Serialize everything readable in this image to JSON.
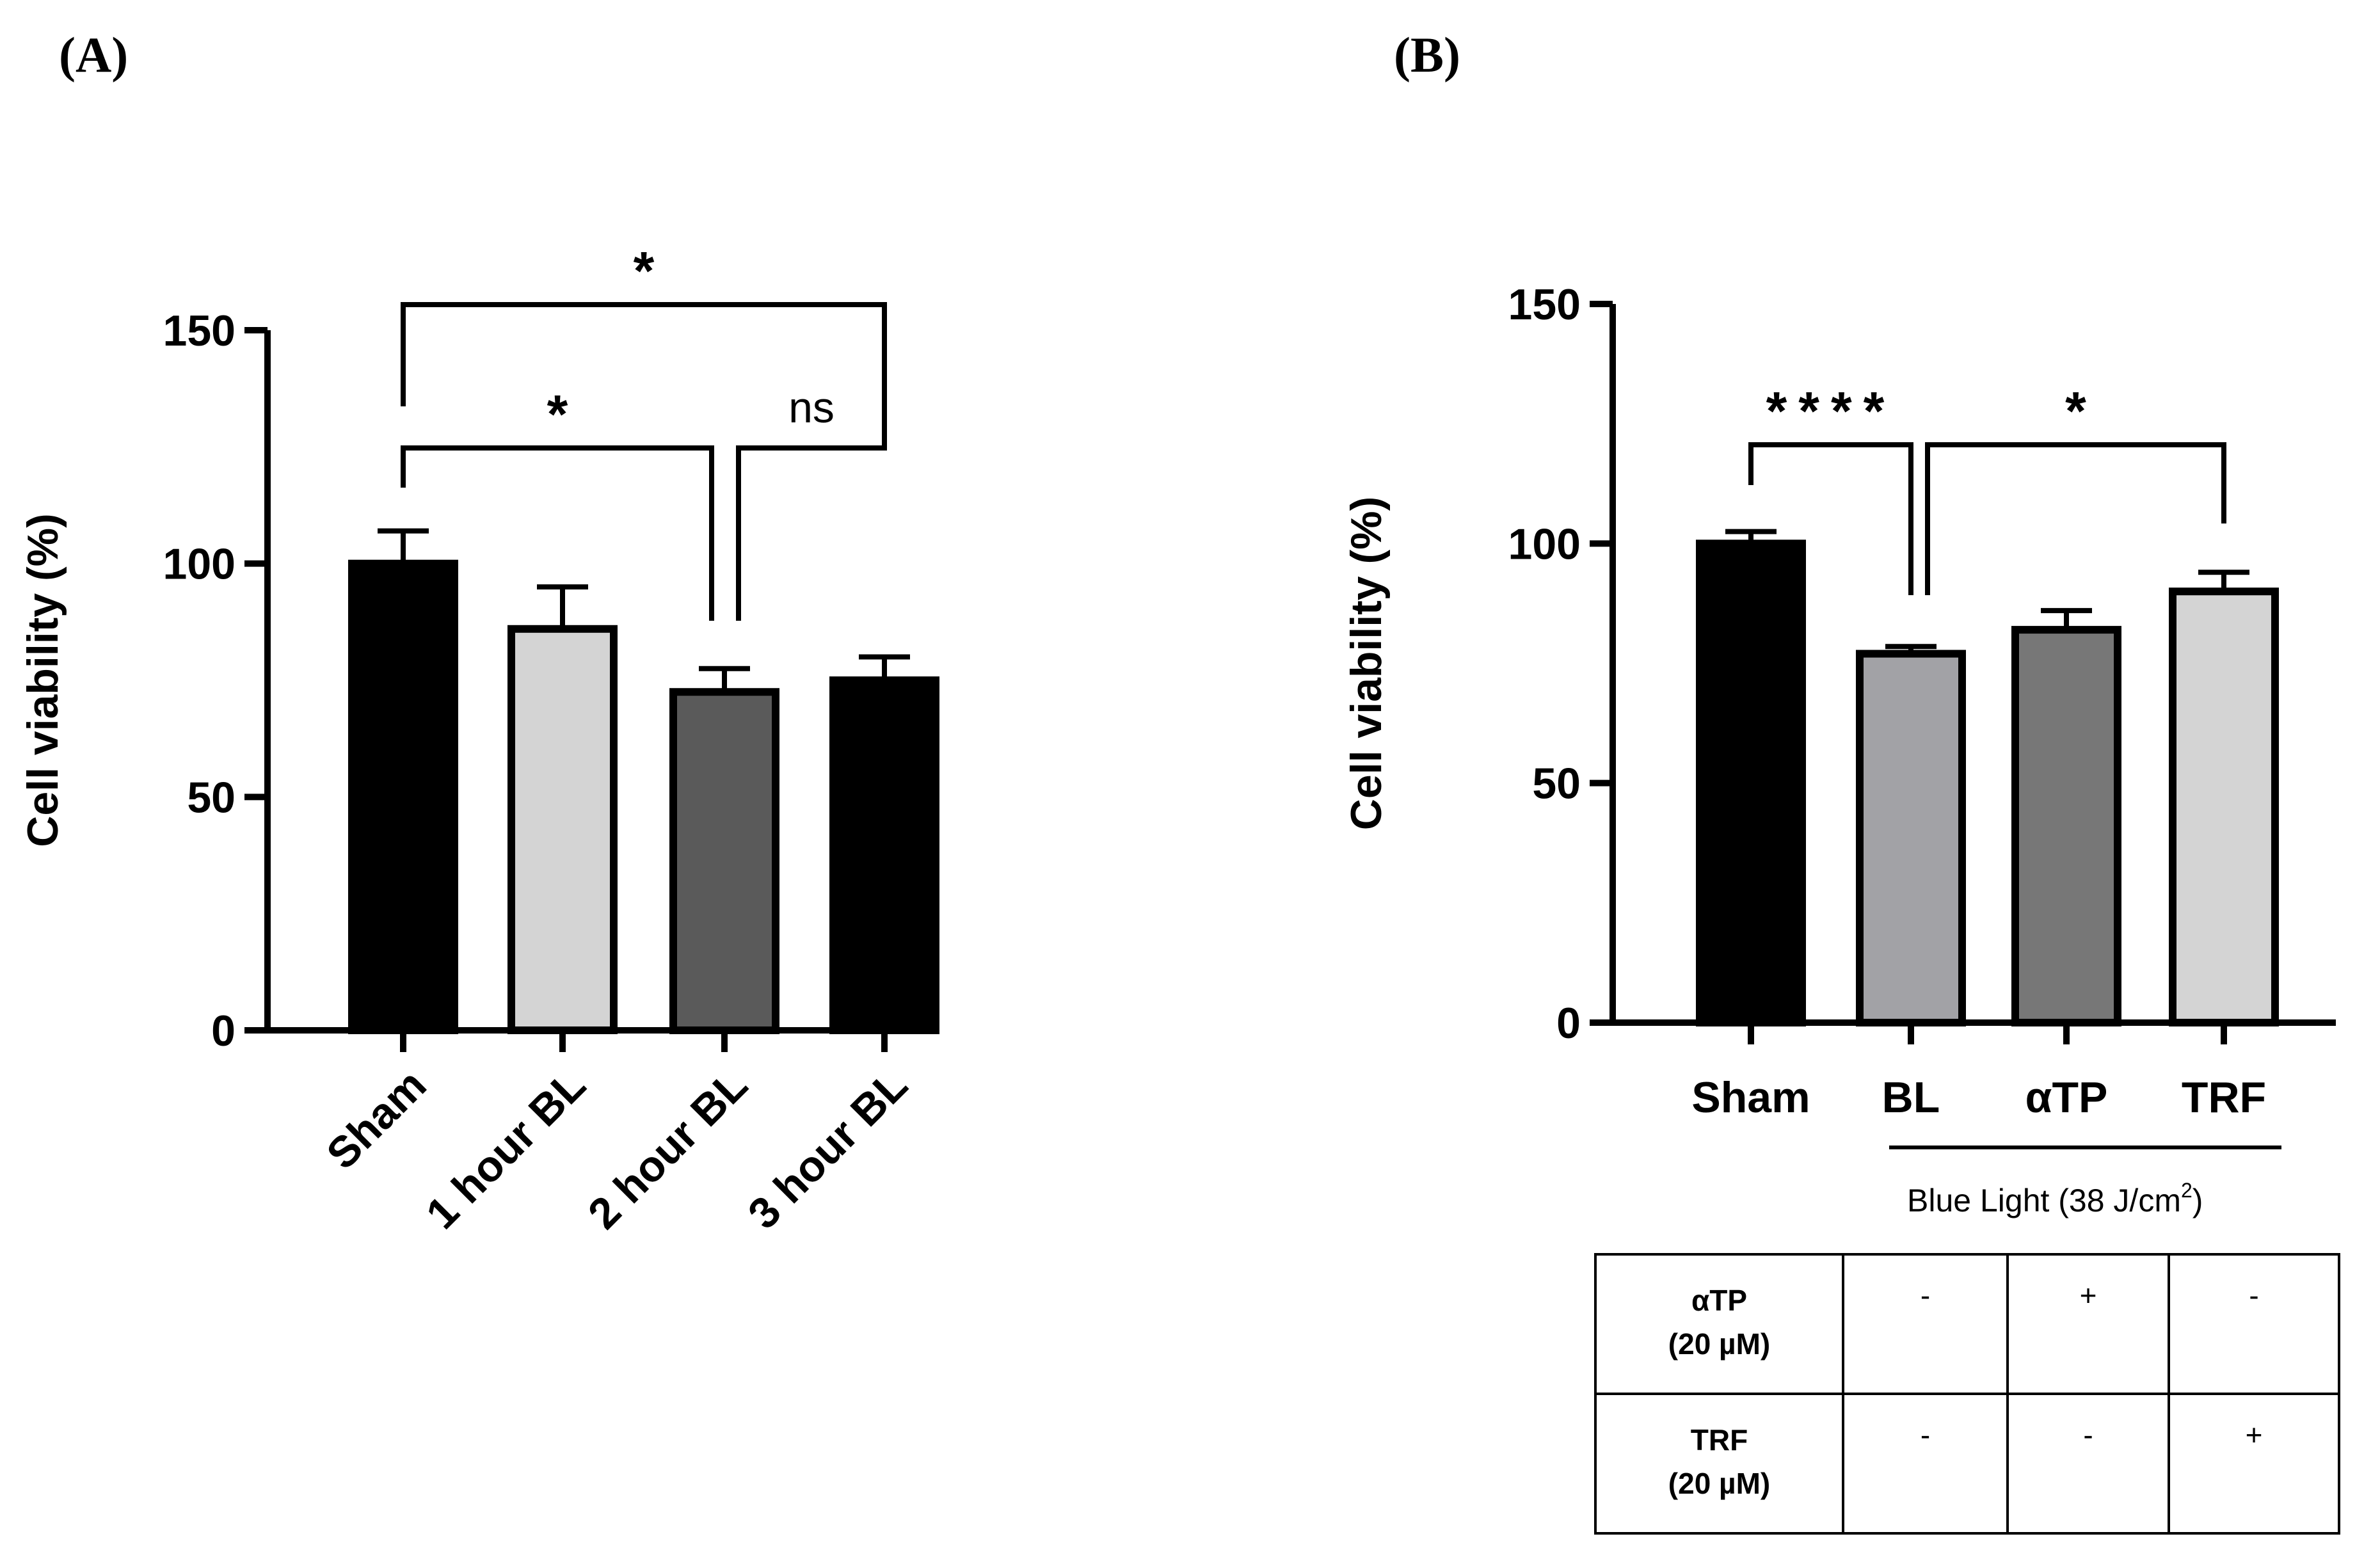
{
  "panels": {
    "a_label": "(A)",
    "b_label": "(B)"
  },
  "chart_data": [
    {
      "type": "bar",
      "panel": "A",
      "ylabel": "Cell viability (%)",
      "xlabel": "",
      "ylim": [
        0,
        150
      ],
      "yticks": [
        0,
        50,
        100,
        150
      ],
      "categories": [
        "Sham",
        "1 hour BL",
        "2 hour BL",
        "3 hour BL"
      ],
      "values": [
        100,
        86,
        72.5,
        75
      ],
      "errors": [
        7,
        9,
        5,
        5
      ],
      "bar_colors": [
        "#000000",
        "#d4d4d4",
        "#5a5a5a",
        "#000000"
      ],
      "annotations": [
        {
          "from": 0,
          "to": 3,
          "label": "*"
        },
        {
          "from": 0,
          "to": 2,
          "label": "*"
        },
        {
          "from": 2,
          "to": 3,
          "label": "ns"
        }
      ]
    },
    {
      "type": "bar",
      "panel": "B",
      "ylabel": "Cell viability (%)",
      "xlabel": "",
      "ylim": [
        0,
        150
      ],
      "yticks": [
        0,
        50,
        100,
        150
      ],
      "categories": [
        "Sham",
        "BL",
        "αTP",
        "TRF"
      ],
      "values": [
        100,
        77,
        82,
        90
      ],
      "errors": [
        2.5,
        1.5,
        4,
        4
      ],
      "bar_colors": [
        "#000000",
        "#a2a2a6",
        "#777777",
        "#d4d4d4"
      ],
      "annotations": [
        {
          "from": 0,
          "to": 1,
          "label": "****"
        },
        {
          "from": 1,
          "to": 3,
          "label": "*"
        }
      ],
      "group_label": {
        "text": "Blue Light (38 J/cm",
        "sup": "2",
        "close": ")"
      },
      "table": {
        "rows": [
          {
            "label_line1": "αTP",
            "label_line2": "(20 µM)",
            "cells": [
              "-",
              "+",
              "-"
            ]
          },
          {
            "label_line1": "TRF",
            "label_line2": "(20 µM)",
            "cells": [
              "-",
              "-",
              "+"
            ]
          }
        ]
      }
    }
  ]
}
